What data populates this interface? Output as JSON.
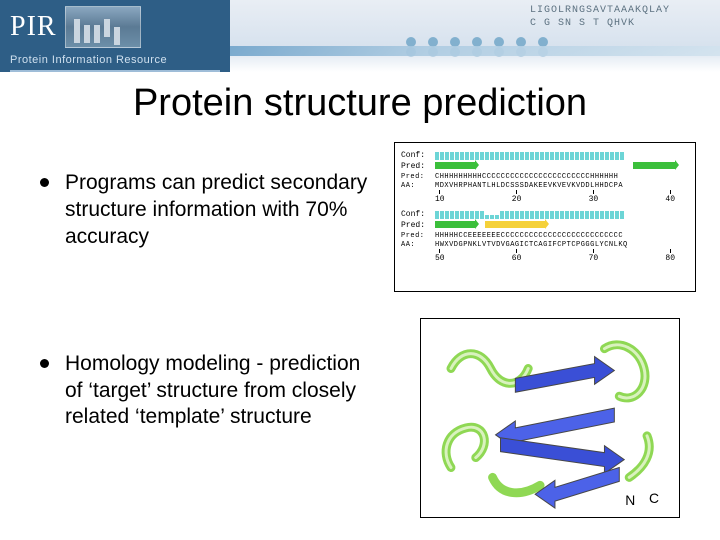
{
  "header": {
    "logo_text": "PIR",
    "subtitle": "Protein Information Resource",
    "seq_line_1": "LIGOLRNGSAVTAAAKQLAY",
    "seq_line_2": "C  G SN   S   T  QHVK",
    "accent_color": "#2e5e86"
  },
  "title": "Protein structure prediction",
  "bullets": [
    "Programs can predict secondary structure information with 70% accuracy",
    "Homology modeling - prediction of ‘target’ structure from closely related ‘template’ structure"
  ],
  "fig1": {
    "type": "secondary-structure-track",
    "labels": {
      "conf": "Conf:",
      "pred": "Pred:",
      "aa": "AA:"
    },
    "row1": {
      "conf_bars": [
        8,
        8,
        7,
        7,
        8,
        8,
        8,
        8,
        8,
        8,
        8,
        7,
        7,
        7,
        7,
        7,
        7,
        7,
        7,
        7,
        7,
        7,
        7,
        7,
        7,
        7,
        7,
        7,
        7,
        7,
        7,
        7,
        7,
        7,
        7,
        7,
        7,
        7
      ],
      "arrows": [
        {
          "color": "green",
          "start": 0,
          "len": 40
        },
        {
          "color": "green",
          "start": 198,
          "len": 42
        }
      ],
      "pred_seq": "CHHHHHHHHHCCCCCCCCCCCCCCCCCCCCCCCHHHHHH",
      "aa_seq": "MDXVHRPHANTLHLDCSSSDAKEEVKVEVKVDDLHHDCPA",
      "ticks": [
        "10",
        "20",
        "30",
        "40"
      ],
      "tick_char": "|"
    },
    "row2": {
      "conf_bars": [
        8,
        8,
        8,
        8,
        8,
        8,
        7,
        7,
        7,
        7,
        6,
        6,
        6,
        7,
        7,
        8,
        8,
        8,
        8,
        8,
        8,
        8,
        8,
        8,
        8,
        8,
        8,
        8,
        8,
        8,
        8,
        8,
        8,
        8,
        8,
        8,
        8,
        8
      ],
      "arrows": [
        {
          "color": "green",
          "start": 0,
          "len": 40
        },
        {
          "color": "yellow",
          "start": 50,
          "len": 60
        }
      ],
      "pred_seq": "HHHHHCCEEEEEEECCCCCCCCCCCCCCCCCCCCCCCCCC",
      "aa_seq": "HWXVDGPNKLVTVDVGAGICTCAGIFCPTCPGGGLYCNLKQ",
      "ticks": [
        "50",
        "60",
        "70",
        "80"
      ],
      "tick_char": "|"
    },
    "colors": {
      "bar": "#6cd5d6",
      "helix": "#3bbf3b",
      "sheet": "#f5d13a",
      "border": "#000000",
      "bg": "#ffffff"
    },
    "font_family": "Courier New",
    "font_size_pt": 6
  },
  "fig2": {
    "type": "ribbon-diagram",
    "labels": {
      "n_terminus": "N",
      "c_terminus": "C"
    },
    "colors": {
      "helix": "#8fd854",
      "sheet": "#3a4fd6",
      "sheet_edge": "#474747",
      "bg": "#ffffff",
      "border": "#000000"
    },
    "helices": 5,
    "sheets": 4
  }
}
